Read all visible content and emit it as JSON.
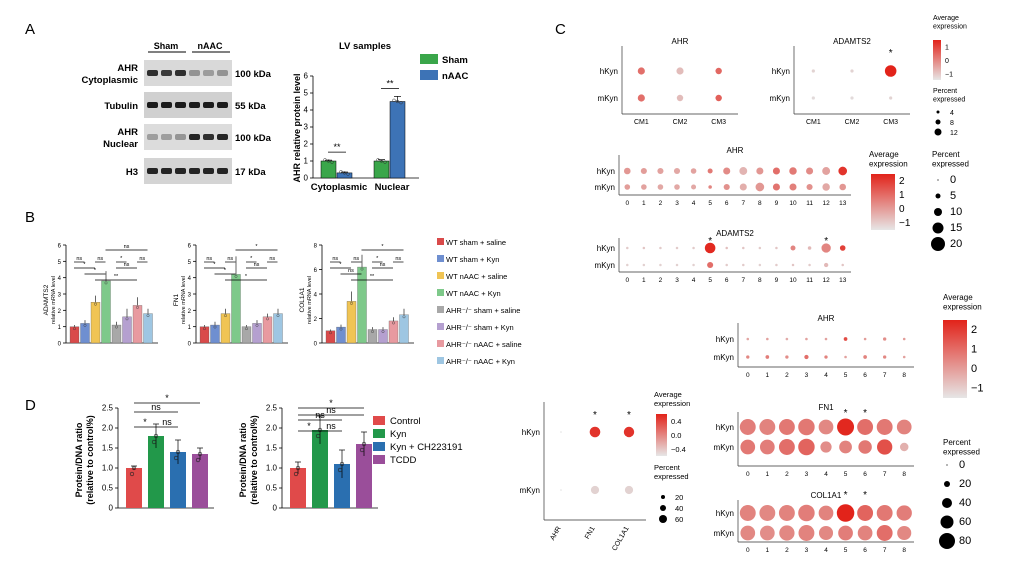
{
  "panels": {
    "a": "A",
    "b": "B",
    "c": "C",
    "d": "D"
  },
  "blot": {
    "groups": [
      "Sham",
      "nAAC"
    ],
    "rows": [
      {
        "label": [
          "AHR",
          "Cytoplasmic"
        ],
        "kda": "100 kDa",
        "bands": [
          0.85,
          0.8,
          0.85,
          0.35,
          0.3,
          0.35
        ],
        "bg": "#d9d9d9"
      },
      {
        "label": [
          "Tubulin"
        ],
        "kda": "55 kDa",
        "bands": [
          0.95,
          0.95,
          0.95,
          0.95,
          0.95,
          0.95
        ],
        "bg": "#d0d0d0"
      },
      {
        "label": [
          "AHR",
          "Nuclear"
        ],
        "kda": "100 kDa",
        "bands": [
          0.3,
          0.3,
          0.35,
          0.9,
          0.85,
          0.9
        ],
        "bg": "#dcdcdc"
      },
      {
        "label": [
          "H3"
        ],
        "kda": "17 kDa",
        "bands": [
          0.9,
          0.9,
          0.9,
          0.9,
          0.9,
          0.9
        ],
        "bg": "#d4d4d4"
      }
    ]
  },
  "chart_data": [
    {
      "id": "lv",
      "type": "bar",
      "title": "LV samples",
      "ylabel": "AHR relative protein level",
      "ylim": [
        0,
        6
      ],
      "yticks": [
        0,
        1,
        2,
        3,
        4,
        5,
        6
      ],
      "categories": [
        "Cytoplasmic",
        "Nuclear"
      ],
      "series": [
        {
          "name": "Sham",
          "color": "#3aa64a",
          "values": [
            1.0,
            1.0
          ],
          "err": [
            0.05,
            0.08
          ]
        },
        {
          "name": "nAAC",
          "color": "#3d73b6",
          "values": [
            0.3,
            4.5
          ],
          "err": [
            0.05,
            0.3
          ]
        }
      ],
      "sig": [
        "**",
        "**"
      ],
      "legend": [
        "Sham",
        "nAAC"
      ]
    },
    {
      "id": "b1",
      "type": "bar",
      "ylabel": [
        "ADAMTS2",
        "relative mRNA level"
      ],
      "ylim": [
        0,
        6
      ],
      "yticks": [
        0,
        1,
        2,
        3,
        4,
        5,
        6
      ],
      "values": [
        1.0,
        1.2,
        2.5,
        3.8,
        1.1,
        1.6,
        2.3,
        1.8
      ],
      "err": [
        0.1,
        0.2,
        0.4,
        0.6,
        0.2,
        0.5,
        0.5,
        0.3
      ],
      "sig": [
        {
          "label": "ns"
        },
        {
          "label": "ns"
        },
        {
          "label": "*"
        },
        {
          "label": "ns"
        },
        {
          "label": "*"
        },
        {
          "label": "*"
        },
        {
          "label": "ns"
        },
        {
          "label": "**"
        },
        {
          "label": "ns"
        }
      ]
    },
    {
      "id": "b2",
      "type": "bar",
      "ylabel": [
        "FN1",
        "relative mRNA level"
      ],
      "ylim": [
        0,
        6
      ],
      "yticks": [
        0,
        1,
        2,
        3,
        4,
        5,
        6
      ],
      "values": [
        1.0,
        1.1,
        1.8,
        4.2,
        1.0,
        1.2,
        1.6,
        1.8
      ],
      "err": [
        0.1,
        0.2,
        0.3,
        1.1,
        0.1,
        0.2,
        0.2,
        0.3
      ],
      "sig": [
        {
          "label": "ns"
        },
        {
          "label": "ns"
        },
        {
          "label": "*"
        },
        {
          "label": "ns"
        },
        {
          "label": "*"
        },
        {
          "label": "*"
        },
        {
          "label": "ns"
        },
        {
          "label": "*"
        },
        {
          "label": "*"
        }
      ]
    },
    {
      "id": "b3",
      "type": "bar",
      "ylabel": [
        "COL1A1",
        "relative mRNA level"
      ],
      "ylim": [
        0,
        8
      ],
      "yticks": [
        0,
        2,
        4,
        6,
        8
      ],
      "values": [
        1.0,
        1.3,
        3.4,
        6.2,
        1.1,
        1.1,
        1.8,
        2.3
      ],
      "err": [
        0.1,
        0.2,
        0.8,
        1.0,
        0.2,
        0.2,
        0.3,
        0.5
      ],
      "sig": [
        {
          "label": "ns"
        },
        {
          "label": "ns"
        },
        {
          "label": "*"
        },
        {
          "label": "ns"
        },
        {
          "label": "*"
        },
        {
          "label": "ns"
        },
        {
          "label": "ns"
        },
        {
          "label": "**"
        },
        {
          "label": "*"
        }
      ]
    },
    {
      "id": "d1",
      "type": "bar",
      "ylabel": [
        "Protein/DNA ratio",
        "(relative to control%)"
      ],
      "ylim": [
        0,
        2.5
      ],
      "yticks": [
        "0",
        "0.5",
        "1.0",
        "1.5",
        "2.0",
        "2.5"
      ],
      "values": [
        1.0,
        1.8,
        1.4,
        1.35
      ],
      "err": [
        0.05,
        0.3,
        0.3,
        0.15
      ],
      "sig": [
        "*",
        "ns",
        "ns",
        "*"
      ]
    },
    {
      "id": "d2",
      "type": "bar",
      "ylabel": [
        "Protein/DNA ratio",
        "(relative to control%)"
      ],
      "ylim": [
        0,
        2.5
      ],
      "yticks": [
        "0",
        "0.5",
        "1.0",
        "1.5",
        "2.0",
        "2.5"
      ],
      "values": [
        1.0,
        1.95,
        1.1,
        1.6
      ],
      "err": [
        0.15,
        0.35,
        0.35,
        0.3
      ],
      "sig": [
        "*",
        "ns",
        "ns",
        "ns",
        "*"
      ]
    },
    {
      "id": "c1",
      "type": "scatter",
      "title": "AHR",
      "rows": [
        "hKyn",
        "mKyn"
      ],
      "x": [
        "CM1",
        "CM2",
        "CM3"
      ],
      "expr": [
        [
          0.5,
          -0.5,
          0.6
        ],
        [
          0.5,
          -0.5,
          0.7
        ]
      ],
      "pct": [
        [
          5,
          5,
          4
        ],
        [
          5,
          4,
          4
        ]
      ]
    },
    {
      "id": "c2",
      "type": "scatter",
      "title": "ADAMTS2",
      "rows": [
        "hKyn",
        "mKyn"
      ],
      "x": [
        "CM1",
        "CM2",
        "CM3"
      ],
      "expr": [
        [
          -0.8,
          -0.8,
          1.5
        ],
        [
          -0.9,
          -0.9,
          -0.8
        ]
      ],
      "pct": [
        [
          1,
          1,
          13
        ],
        [
          1,
          1,
          1
        ]
      ],
      "star": [
        2
      ]
    },
    {
      "id": "c3",
      "type": "scatter",
      "title": "AHR",
      "rows": [
        "hKyn",
        "mKyn"
      ],
      "x": [
        "0",
        "1",
        "2",
        "3",
        "4",
        "5",
        "6",
        "7",
        "8",
        "9",
        "10",
        "11",
        "12",
        "13"
      ],
      "expr": [
        [
          0.3,
          0.2,
          0.1,
          0,
          0.1,
          0.8,
          0.5,
          -0.2,
          0.3,
          1.0,
          0.8,
          0.5,
          0.1,
          2.0
        ],
        [
          0.2,
          0.1,
          0.0,
          0.0,
          0.0,
          0.6,
          0.4,
          -0.1,
          0.3,
          0.9,
          0.7,
          0.4,
          0.0,
          0.3
        ]
      ],
      "pct": [
        [
          7,
          6,
          6,
          6,
          5,
          4,
          8,
          10,
          8,
          8,
          9,
          8,
          10,
          12
        ],
        [
          5,
          5,
          5,
          5,
          4,
          2,
          6,
          8,
          12,
          8,
          8,
          6,
          9,
          7
        ]
      ]
    },
    {
      "id": "c4",
      "type": "scatter",
      "title": "ADAMTS2",
      "rows": [
        "hKyn",
        "mKyn"
      ],
      "x": [
        "0",
        "1",
        "2",
        "3",
        "4",
        "5",
        "6",
        "7",
        "8",
        "9",
        "10",
        "11",
        "12",
        "13"
      ],
      "expr": [
        [
          -0.6,
          -0.5,
          -0.6,
          -0.6,
          -0.6,
          2.2,
          -0.4,
          -0.5,
          -0.6,
          -0.5,
          0.6,
          -0.3,
          0.6,
          1.8
        ],
        [
          -0.7,
          -0.7,
          -0.7,
          -0.7,
          -0.7,
          1.0,
          -0.6,
          -0.6,
          -0.7,
          -0.6,
          -0.5,
          -0.6,
          -0.3,
          -0.5
        ]
      ],
      "pct": [
        [
          1,
          1,
          1,
          1,
          1,
          18,
          1,
          1,
          1,
          1,
          4,
          2,
          14,
          5
        ],
        [
          1,
          1,
          1,
          1,
          1,
          6,
          1,
          1,
          1,
          1,
          1,
          1,
          3,
          1
        ]
      ],
      "star": [
        5,
        12
      ]
    },
    {
      "id": "c5",
      "type": "scatter",
      "title": "AHR",
      "rows": [
        "hKyn",
        "mKyn"
      ],
      "x": [
        "0",
        "1",
        "2",
        "3",
        "4",
        "5",
        "6",
        "7",
        "8"
      ],
      "expr": [
        [
          -0.3,
          -0.2,
          -0.4,
          -0.2,
          -0.2,
          1.5,
          -0.1,
          0.2,
          -0.1
        ],
        [
          0.3,
          0.5,
          0.2,
          0.8,
          0.4,
          -0.2,
          0.4,
          0.3,
          -0.2
        ]
      ],
      "pct": [
        [
          3,
          3,
          3,
          3,
          3,
          6,
          3,
          5,
          3
        ],
        [
          5,
          6,
          5,
          8,
          5,
          3,
          6,
          5,
          3
        ]
      ]
    },
    {
      "id": "c6",
      "type": "scatter",
      "title": "FN1",
      "rows": [
        "hKyn",
        "mKyn"
      ],
      "x": [
        "0",
        "1",
        "2",
        "3",
        "4",
        "5",
        "6",
        "7",
        "8"
      ],
      "expr": [
        [
          0.5,
          0.4,
          0.6,
          0.6,
          0.3,
          2.2,
          0.8,
          0.6,
          0.4
        ],
        [
          0.6,
          0.5,
          0.8,
          1.0,
          0.2,
          0.4,
          0.6,
          1.4,
          -0.5
        ]
      ],
      "pct": [
        [
          70,
          70,
          70,
          75,
          60,
          80,
          70,
          70,
          60
        ],
        [
          60,
          60,
          70,
          75,
          35,
          45,
          50,
          65,
          20
        ]
      ],
      "star": [
        5,
        6
      ]
    },
    {
      "id": "c7",
      "type": "scatter",
      "title": "COL1A1",
      "rows": [
        "hKyn",
        "mKyn"
      ],
      "x": [
        "0",
        "1",
        "2",
        "3",
        "4",
        "5",
        "6",
        "7",
        "8"
      ],
      "expr": [
        [
          0.4,
          0.3,
          0.4,
          0.5,
          0.4,
          2.4,
          1.0,
          0.6,
          0.5
        ],
        [
          0.3,
          0.2,
          0.3,
          0.4,
          0.3,
          0.5,
          0.4,
          0.8,
          0.3
        ]
      ],
      "pct": [
        [
          70,
          70,
          70,
          75,
          60,
          85,
          70,
          70,
          65
        ],
        [
          60,
          60,
          65,
          70,
          55,
          60,
          60,
          70,
          55
        ]
      ],
      "star": [
        5,
        6
      ]
    },
    {
      "id": "c8",
      "type": "scatter",
      "rows": [
        "hKyn",
        "mKyn"
      ],
      "x": [
        "AHR",
        "FN1",
        "COL1A1"
      ],
      "expr": [
        [
          -0.5,
          0.6,
          0.6
        ],
        [
          -0.6,
          -0.4,
          -0.4
        ]
      ],
      "pct": [
        [
          1,
          50,
          48
        ],
        [
          1,
          30,
          30
        ]
      ],
      "star": [
        1,
        2
      ]
    }
  ],
  "legend_b": [
    {
      "label": "WT sham + saline",
      "color": "#d94a4a"
    },
    {
      "label": "WT sham + Kyn",
      "color": "#6f8fd0"
    },
    {
      "label": "WT nAAC + saline",
      "color": "#f0c454"
    },
    {
      "label": "WT nAAC + Kyn",
      "color": "#7ec98a"
    },
    {
      "label": "AHR⁻/⁻ sham + saline",
      "color": "#a8a8a8"
    },
    {
      "label": "AHR⁻/⁻ sham + Kyn",
      "color": "#b5a0d0"
    },
    {
      "label": "AHR⁻/⁻ nAAC + saline",
      "color": "#e89aa0"
    },
    {
      "label": "AHR⁻/⁻ nAAC + Kyn",
      "color": "#9ec6e2"
    }
  ],
  "legend_d": [
    {
      "label": "Control",
      "color": "#e04a4a"
    },
    {
      "label": "Kyn",
      "color": "#22984a"
    },
    {
      "label": "Kyn + CH223191",
      "color": "#2a6fb0"
    },
    {
      "label": "TCDD",
      "color": "#9a4e9a"
    }
  ],
  "c_legends": {
    "avg": [
      "Average",
      "expression"
    ],
    "pct": [
      "Percent",
      "expressed"
    ],
    "l1_ticks": [
      "1",
      "0",
      "−1"
    ],
    "l1_sizes": [
      "4",
      "8",
      "12"
    ],
    "l2_ticks": [
      "2",
      "1",
      "0",
      "−1"
    ],
    "l2_sizes": [
      "0",
      "5",
      "10",
      "15",
      "20"
    ],
    "l3_ticks": [
      "2",
      "1",
      "0",
      "−1"
    ],
    "l3_sizes": [
      "0",
      "20",
      "40",
      "60",
      "80"
    ],
    "l4_ticks": [
      "0.4",
      "0.0",
      "−0.4"
    ],
    "l4_sizes": [
      "20",
      "40",
      "60"
    ]
  }
}
